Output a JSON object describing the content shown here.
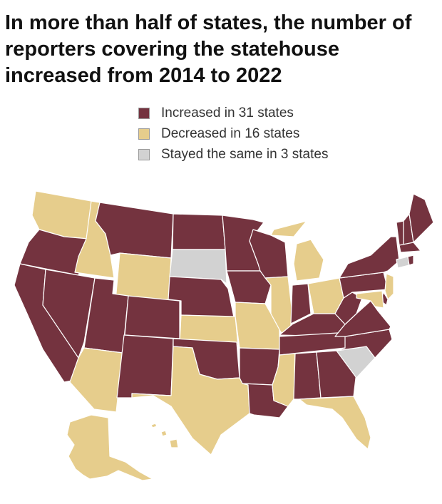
{
  "title": "In more than half of states, the number of reporters covering the statehouse increased from 2014 to 2022",
  "legend": [
    {
      "key": "increased",
      "label": "Increased in 31 states",
      "color": "#74333f"
    },
    {
      "key": "decreased",
      "label": "Decreased in 16 states",
      "color": "#e6cd8c"
    },
    {
      "key": "same",
      "label": "Stayed the same in 3 states",
      "color": "#d2d2d2"
    }
  ],
  "map_data": {
    "increased": [
      "OR",
      "CA",
      "NV",
      "UT",
      "MT",
      "CO",
      "NM",
      "ND",
      "NE",
      "OK",
      "MN",
      "IA",
      "AR",
      "LA",
      "WI",
      "IN",
      "KY",
      "TN",
      "AL",
      "GA",
      "WV",
      "VA",
      "NC",
      "PA",
      "NY",
      "VT",
      "NH",
      "ME",
      "MA",
      "RI",
      "DE"
    ],
    "decreased": [
      "WA",
      "ID",
      "WY",
      "AZ",
      "TX",
      "KS",
      "MO",
      "IL",
      "MI",
      "OH",
      "MS",
      "FL",
      "NJ",
      "MD",
      "AK",
      "HI"
    ],
    "same": [
      "SD",
      "SC",
      "CT"
    ]
  }
}
